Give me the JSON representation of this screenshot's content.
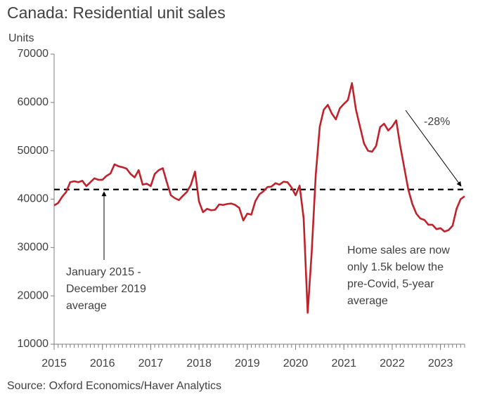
{
  "chart_data": {
    "type": "line",
    "title": "Canada: Residential unit sales",
    "y_label": "Units",
    "source": "Source: Oxford Economics/Haver Analytics",
    "x": [
      2015.0,
      2015.083,
      2015.167,
      2015.25,
      2015.333,
      2015.417,
      2015.5,
      2015.583,
      2015.667,
      2015.75,
      2015.833,
      2015.917,
      2016.0,
      2016.083,
      2016.167,
      2016.25,
      2016.333,
      2016.417,
      2016.5,
      2016.583,
      2016.667,
      2016.75,
      2016.833,
      2016.917,
      2017.0,
      2017.083,
      2017.167,
      2017.25,
      2017.333,
      2017.417,
      2017.5,
      2017.583,
      2017.667,
      2017.75,
      2017.833,
      2017.917,
      2018.0,
      2018.083,
      2018.167,
      2018.25,
      2018.333,
      2018.417,
      2018.5,
      2018.583,
      2018.667,
      2018.75,
      2018.833,
      2018.917,
      2019.0,
      2019.083,
      2019.167,
      2019.25,
      2019.333,
      2019.417,
      2019.5,
      2019.583,
      2019.667,
      2019.75,
      2019.833,
      2019.917,
      2020.0,
      2020.083,
      2020.167,
      2020.25,
      2020.333,
      2020.417,
      2020.5,
      2020.583,
      2020.667,
      2020.75,
      2020.833,
      2020.917,
      2021.0,
      2021.083,
      2021.167,
      2021.25,
      2021.333,
      2021.417,
      2021.5,
      2021.583,
      2021.667,
      2021.75,
      2021.833,
      2021.917,
      2022.0,
      2022.083,
      2022.167,
      2022.25,
      2022.333,
      2022.417,
      2022.5,
      2022.583,
      2022.667,
      2022.75,
      2022.833,
      2022.917,
      2023.0,
      2023.083,
      2023.167,
      2023.25,
      2023.333,
      2023.417,
      2023.5
    ],
    "series": [
      {
        "name": "Residential unit sales",
        "color": "#c0222c",
        "values": [
          38700,
          39200,
          40500,
          41500,
          43500,
          43700,
          43500,
          43800,
          42700,
          43500,
          44300,
          44000,
          44000,
          44800,
          45300,
          47200,
          46800,
          46600,
          46300,
          45200,
          44500,
          46000,
          43000,
          43200,
          42700,
          45200,
          46000,
          46400,
          43500,
          40800,
          40200,
          39800,
          40700,
          41500,
          43000,
          45700,
          39500,
          37300,
          38000,
          37700,
          37800,
          38900,
          38800,
          39000,
          39100,
          38800,
          38200,
          35600,
          37000,
          36800,
          39600,
          41000,
          41600,
          42500,
          42600,
          43300,
          43000,
          43600,
          43500,
          42400,
          40800,
          42800,
          36000,
          16500,
          29000,
          45000,
          55000,
          58500,
          59500,
          57700,
          56500,
          58800,
          59700,
          60500,
          64000,
          58500,
          55000,
          51500,
          50000,
          49800,
          51000,
          54900,
          55600,
          54200,
          55000,
          56300,
          51000,
          46500,
          42000,
          39000,
          37000,
          36000,
          35700,
          34700,
          34700,
          33800,
          34000,
          33300,
          33600,
          34500,
          38000,
          40000,
          40600
        ]
      }
    ],
    "reference": {
      "value": 42000,
      "label": [
        "January 2015 -",
        "December 2019",
        "average"
      ]
    },
    "annotations": [
      {
        "text": "-28%"
      },
      {
        "text": [
          "Home sales are now",
          "only 1.5k below the",
          "pre-Covid, 5-year",
          "average"
        ]
      }
    ],
    "xlim": [
      2015,
      2023.5
    ],
    "xticks": [
      2015,
      2016,
      2017,
      2018,
      2019,
      2020,
      2021,
      2022,
      2023
    ],
    "ylim": [
      10000,
      70000
    ],
    "yticks": [
      10000,
      20000,
      30000,
      40000,
      50000,
      60000,
      70000
    ]
  }
}
